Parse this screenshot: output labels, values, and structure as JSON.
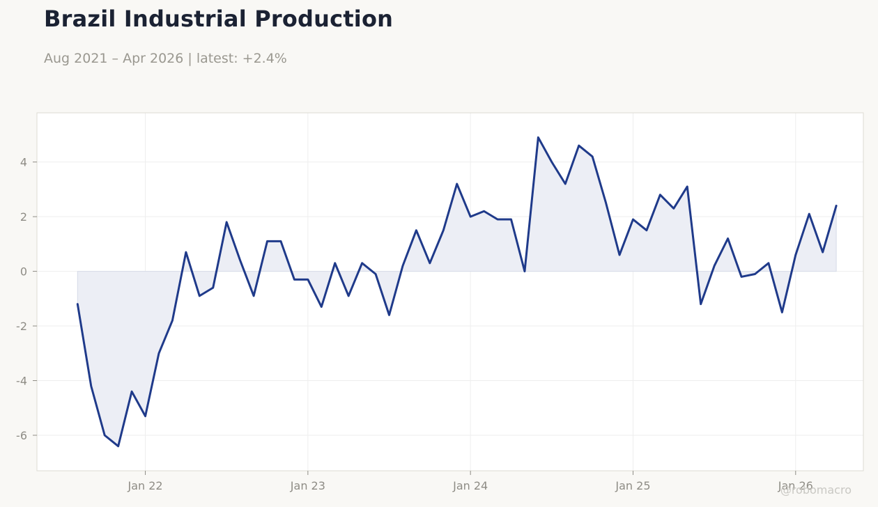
{
  "header": {
    "title": "Brazil Industrial Production",
    "subtitle": "Aug 2021 – Apr 2026 | latest: +2.4%"
  },
  "watermark": "@robomacro",
  "colors": {
    "line": "#1f3a8a",
    "fill": "#eceef5",
    "grid": "#eeeeee",
    "plot_border": "#dddbd3",
    "tick_text": "#8e8c85",
    "background": "#f9f8f5"
  },
  "chart_data": {
    "type": "area",
    "title": "Brazil Industrial Production",
    "subtitle": "Aug 2021 – Apr 2026 | latest: +2.4%",
    "xlabel": "",
    "ylabel": "",
    "x_start": "2021-08",
    "x_frequency": "monthly",
    "xlim": [
      "2021-05",
      "2026-06"
    ],
    "ylim": [
      -7.3,
      5.8
    ],
    "x_ticks": [
      {
        "date": "2022-01",
        "label": "Jan 22"
      },
      {
        "date": "2023-01",
        "label": "Jan 23"
      },
      {
        "date": "2024-01",
        "label": "Jan 24"
      },
      {
        "date": "2025-01",
        "label": "Jan 25"
      },
      {
        "date": "2026-01",
        "label": "Jan 26"
      }
    ],
    "y_ticks": [
      {
        "value": 4,
        "label": "4"
      },
      {
        "value": 2,
        "label": "2"
      },
      {
        "value": 0,
        "label": "0"
      },
      {
        "value": -2,
        "label": "-2"
      },
      {
        "value": -4,
        "label": "-4"
      },
      {
        "value": -6,
        "label": "-6"
      }
    ],
    "grid": true,
    "legend": "none",
    "series": [
      {
        "values": [
          -1.2,
          -4.2,
          -6.0,
          -6.4,
          -4.4,
          -5.3,
          -3.0,
          -1.8,
          0.7,
          -0.9,
          -0.6,
          1.8,
          0.4,
          -0.9,
          1.1,
          1.1,
          -0.3,
          -0.3,
          -1.3,
          0.3,
          -0.9,
          0.3,
          -0.1,
          -1.6,
          0.2,
          1.5,
          0.3,
          1.5,
          3.2,
          2.0,
          2.2,
          1.9,
          1.9,
          0.0,
          4.9,
          4.0,
          3.2,
          4.6,
          4.2,
          2.5,
          0.6,
          1.9,
          1.5,
          2.8,
          2.3,
          3.1,
          -1.2,
          0.2,
          1.2,
          -0.2,
          -0.1,
          0.3,
          -1.5,
          0.6,
          2.1,
          0.7,
          2.4
        ]
      }
    ]
  }
}
